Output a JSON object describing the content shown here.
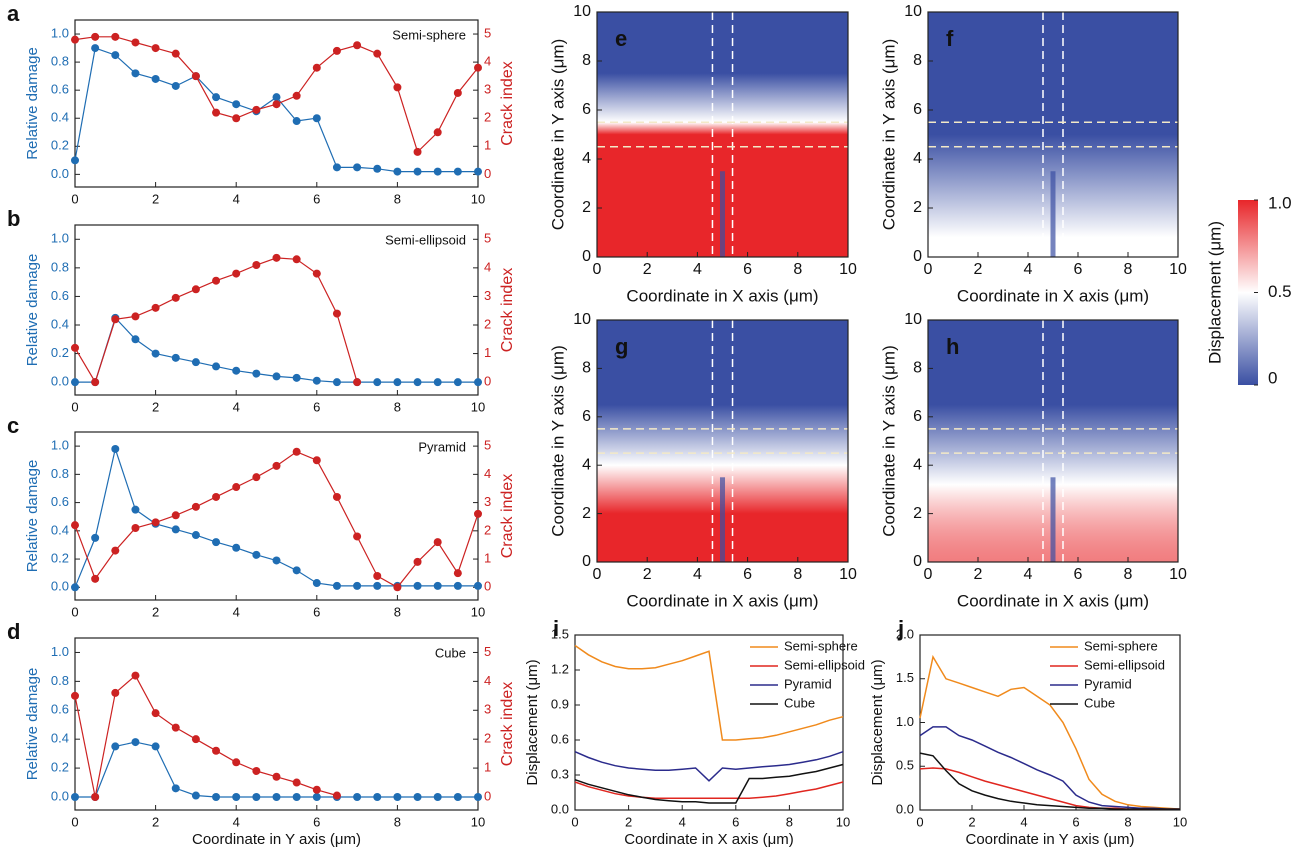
{
  "chart_data": [
    {
      "type": "line",
      "panel": "a",
      "annotation": "Semi-sphere",
      "markers": true,
      "ylabel": "Relative damage",
      "y2label": "Crack index",
      "x": [
        0,
        0.5,
        1,
        1.5,
        2,
        2.5,
        3,
        3.5,
        4,
        4.5,
        5,
        5.5,
        6,
        6.5,
        7,
        7.5,
        8,
        8.5,
        9,
        9.5,
        10
      ],
      "xlim": [
        0,
        10
      ],
      "xticks": [
        0,
        2,
        4,
        6,
        8,
        10
      ],
      "ylim": [
        -0.09,
        1.1
      ],
      "yticks": [
        {
          "value": 0,
          "label": "0.0"
        },
        {
          "value": 0.2,
          "label": "0.2"
        },
        {
          "value": 0.4,
          "label": "0.4"
        },
        {
          "value": 0.6,
          "label": "0.6"
        },
        {
          "value": 0.8,
          "label": "0.8"
        },
        {
          "value": 1,
          "label": "1.0"
        }
      ],
      "y2lim": [
        -0.45,
        5.5
      ],
      "y2ticks": [
        0,
        1,
        2,
        3,
        4,
        5
      ],
      "series": [
        {
          "color": "#1f6db3",
          "values": [
            0.1,
            0.9,
            0.85,
            0.72,
            0.68,
            0.63,
            0.7,
            0.55,
            0.5,
            0.45,
            0.55,
            0.38,
            0.4,
            0.05,
            0.05,
            0.04,
            0.02,
            0.02,
            0.02,
            0.02,
            0.02
          ]
        },
        {
          "color": "#cc2222",
          "axis": "y2",
          "values": [
            4.8,
            4.9,
            4.9,
            4.7,
            4.5,
            4.3,
            3.5,
            2.2,
            2.0,
            2.3,
            2.5,
            2.8,
            3.8,
            4.4,
            4.6,
            4.3,
            3.1,
            0.8,
            1.5,
            2.9,
            3.8
          ]
        }
      ]
    },
    {
      "type": "line",
      "panel": "b",
      "annotation": "Semi-ellipsoid",
      "markers": true,
      "ylabel": "Relative damage",
      "y2label": "Crack index",
      "x": [
        0,
        0.5,
        1,
        1.5,
        2,
        2.5,
        3,
        3.5,
        4,
        4.5,
        5,
        5.5,
        6,
        6.5,
        7,
        7.5,
        8,
        8.5,
        9,
        9.5,
        10
      ],
      "xlim": [
        0,
        10
      ],
      "xticks": [
        0,
        2,
        4,
        6,
        8,
        10
      ],
      "ylim": [
        -0.09,
        1.1
      ],
      "yticks": [
        {
          "value": 0,
          "label": "0.0"
        },
        {
          "value": 0.2,
          "label": "0.2"
        },
        {
          "value": 0.4,
          "label": "0.4"
        },
        {
          "value": 0.6,
          "label": "0.6"
        },
        {
          "value": 0.8,
          "label": "0.8"
        },
        {
          "value": 1,
          "label": "1.0"
        }
      ],
      "y2lim": [
        -0.45,
        5.5
      ],
      "y2ticks": [
        0,
        1,
        2,
        3,
        4,
        5
      ],
      "series": [
        {
          "color": "#1f6db3",
          "values": [
            0,
            0,
            0.45,
            0.3,
            0.2,
            0.17,
            0.14,
            0.11,
            0.08,
            0.06,
            0.04,
            0.03,
            0.01,
            0,
            0,
            0,
            0,
            0,
            0,
            0,
            0
          ]
        },
        {
          "color": "#cc2222",
          "axis": "y2",
          "values": [
            1.2,
            0,
            2.2,
            2.3,
            2.6,
            2.95,
            3.25,
            3.55,
            3.8,
            4.1,
            4.35,
            4.3,
            3.8,
            2.4,
            0,
            null,
            null,
            null,
            null,
            null,
            null
          ]
        }
      ]
    },
    {
      "type": "line",
      "panel": "c",
      "annotation": "Pyramid",
      "markers": true,
      "ylabel": "Relative damage",
      "y2label": "Crack index",
      "x": [
        0,
        0.5,
        1,
        1.5,
        2,
        2.5,
        3,
        3.5,
        4,
        4.5,
        5,
        5.5,
        6,
        6.5,
        7,
        7.5,
        8,
        8.5,
        9,
        9.5,
        10
      ],
      "xlim": [
        0,
        10
      ],
      "xticks": [
        0,
        2,
        4,
        6,
        8,
        10
      ],
      "ylim": [
        -0.09,
        1.1
      ],
      "yticks": [
        {
          "value": 0,
          "label": "0.0"
        },
        {
          "value": 0.2,
          "label": "0.2"
        },
        {
          "value": 0.4,
          "label": "0.4"
        },
        {
          "value": 0.6,
          "label": "0.6"
        },
        {
          "value": 0.8,
          "label": "0.8"
        },
        {
          "value": 1,
          "label": "1.0"
        }
      ],
      "y2lim": [
        -0.45,
        5.5
      ],
      "y2ticks": [
        0,
        1,
        2,
        3,
        4,
        5
      ],
      "series": [
        {
          "color": "#1f6db3",
          "values": [
            0,
            0.35,
            0.98,
            0.55,
            0.45,
            0.41,
            0.37,
            0.32,
            0.28,
            0.23,
            0.19,
            0.12,
            0.03,
            0.01,
            0.01,
            0.01,
            0.01,
            0.01,
            0.01,
            0.01,
            0.01
          ]
        },
        {
          "color": "#cc2222",
          "axis": "y2",
          "values": [
            2.2,
            0.3,
            1.3,
            2.1,
            2.3,
            2.55,
            2.85,
            3.2,
            3.55,
            3.9,
            4.3,
            4.8,
            4.5,
            3.2,
            1.8,
            0.4,
            0,
            0.9,
            1.6,
            0.5,
            2.6
          ]
        }
      ]
    },
    {
      "type": "line",
      "panel": "d",
      "annotation": "Cube",
      "markers": true,
      "ylabel": "Relative damage",
      "y2label": "Crack index",
      "xlabel": "Coordinate in Y axis (μm)",
      "x": [
        0,
        0.5,
        1,
        1.5,
        2,
        2.5,
        3,
        3.5,
        4,
        4.5,
        5,
        5.5,
        6,
        6.5,
        7,
        7.5,
        8,
        8.5,
        9,
        9.5,
        10
      ],
      "xlim": [
        0,
        10
      ],
      "xticks": [
        0,
        2,
        4,
        6,
        8,
        10
      ],
      "ylim": [
        -0.09,
        1.1
      ],
      "yticks": [
        {
          "value": 0,
          "label": "0.0"
        },
        {
          "value": 0.2,
          "label": "0.2"
        },
        {
          "value": 0.4,
          "label": "0.4"
        },
        {
          "value": 0.6,
          "label": "0.6"
        },
        {
          "value": 0.8,
          "label": "0.8"
        },
        {
          "value": 1,
          "label": "1.0"
        }
      ],
      "y2lim": [
        -0.45,
        5.5
      ],
      "y2ticks": [
        0,
        1,
        2,
        3,
        4,
        5
      ],
      "series": [
        {
          "color": "#1f6db3",
          "values": [
            0,
            0,
            0.35,
            0.38,
            0.35,
            0.06,
            0.01,
            0,
            0,
            0,
            0,
            0,
            0,
            0,
            0,
            0,
            0,
            0,
            0,
            0,
            0
          ]
        },
        {
          "color": "#cc2222",
          "axis": "y2",
          "values": [
            3.5,
            0,
            3.6,
            4.2,
            2.9,
            2.4,
            2.0,
            1.6,
            1.2,
            0.9,
            0.7,
            0.5,
            0.25,
            0.05,
            null,
            null,
            null,
            null,
            null,
            null,
            null
          ]
        }
      ]
    },
    {
      "type": "heatmap",
      "panel": "e",
      "xlabel": "Coordinate in X axis (μm)",
      "ylabel": "Coordinate in Y axis (μm)",
      "xlim": [
        0,
        10
      ],
      "ylim": [
        0,
        10
      ],
      "xticks": [
        0,
        2,
        4,
        6,
        8,
        10
      ],
      "yticks": [
        0,
        2,
        4,
        6,
        8,
        10
      ]
    },
    {
      "type": "heatmap",
      "panel": "f",
      "xlabel": "Coordinate in X axis (μm)",
      "ylabel": "Coordinate in Y axis (μm)",
      "xlim": [
        0,
        10
      ],
      "ylim": [
        0,
        10
      ],
      "xticks": [
        0,
        2,
        4,
        6,
        8,
        10
      ],
      "yticks": [
        0,
        2,
        4,
        6,
        8,
        10
      ]
    },
    {
      "type": "heatmap",
      "panel": "g",
      "xlabel": "Coordinate in X axis (μm)",
      "ylabel": "Coordinate in Y axis (μm)",
      "xlim": [
        0,
        10
      ],
      "ylim": [
        0,
        10
      ],
      "xticks": [
        0,
        2,
        4,
        6,
        8,
        10
      ],
      "yticks": [
        0,
        2,
        4,
        6,
        8,
        10
      ]
    },
    {
      "type": "heatmap",
      "panel": "h",
      "xlabel": "Coordinate in X axis (μm)",
      "ylabel": "Coordinate in Y axis (μm)",
      "xlim": [
        0,
        10
      ],
      "ylim": [
        0,
        10
      ],
      "xticks": [
        0,
        2,
        4,
        6,
        8,
        10
      ],
      "yticks": [
        0,
        2,
        4,
        6,
        8,
        10
      ]
    },
    {
      "type": "line",
      "panel": "i",
      "xlabel": "Coordinate in X axis (μm)",
      "ylabel": "Displacement (μm)",
      "x": [
        0,
        0.5,
        1,
        1.5,
        2,
        2.5,
        3,
        3.5,
        4,
        4.5,
        5,
        5.5,
        6,
        6.5,
        7,
        7.5,
        8,
        8.5,
        9,
        9.5,
        10
      ],
      "xlim": [
        0,
        10
      ],
      "xticks": [
        0,
        2,
        4,
        6,
        8,
        10
      ],
      "ylim": [
        0,
        1.5
      ],
      "yticks": [
        {
          "value": 0,
          "label": "0.0"
        },
        {
          "value": 0.3,
          "label": "0.3"
        },
        {
          "value": 0.6,
          "label": "0.6"
        },
        {
          "value": 0.9,
          "label": "0.9"
        },
        {
          "value": 1.2,
          "label": "1.2"
        },
        {
          "value": 1.5,
          "label": "1.5"
        }
      ],
      "series": [
        {
          "name": "Semi-sphere",
          "color": "#f08a1c",
          "values": [
            1.41,
            1.33,
            1.27,
            1.23,
            1.21,
            1.21,
            1.22,
            1.25,
            1.28,
            1.32,
            1.36,
            0.6,
            0.6,
            0.61,
            0.62,
            0.64,
            0.67,
            0.7,
            0.73,
            0.77,
            0.8
          ]
        },
        {
          "name": "Semi-ellipsoid",
          "color": "#e0261f",
          "values": [
            0.24,
            0.2,
            0.17,
            0.14,
            0.12,
            0.11,
            0.1,
            0.1,
            0.1,
            0.1,
            0.1,
            0.1,
            0.1,
            0.1,
            0.11,
            0.12,
            0.14,
            0.16,
            0.18,
            0.21,
            0.24
          ]
        },
        {
          "name": "Pyramid",
          "color": "#2b2b8c",
          "values": [
            0.5,
            0.45,
            0.41,
            0.38,
            0.36,
            0.35,
            0.34,
            0.34,
            0.35,
            0.36,
            0.25,
            0.36,
            0.35,
            0.36,
            0.37,
            0.38,
            0.39,
            0.41,
            0.43,
            0.46,
            0.5
          ]
        },
        {
          "name": "Cube",
          "color": "#111111",
          "values": [
            0.26,
            0.22,
            0.19,
            0.16,
            0.13,
            0.11,
            0.09,
            0.08,
            0.07,
            0.07,
            0.06,
            0.06,
            0.06,
            0.27,
            0.27,
            0.28,
            0.29,
            0.31,
            0.33,
            0.36,
            0.39
          ]
        }
      ]
    },
    {
      "type": "line",
      "panel": "j",
      "xlabel": "Coordinate in Y axis (μm)",
      "ylabel": "Displacement (μm)",
      "x": [
        0,
        0.5,
        1,
        1.5,
        2,
        2.5,
        3,
        3.5,
        4,
        4.5,
        5,
        5.5,
        6,
        6.5,
        7,
        7.5,
        8,
        8.5,
        9,
        9.5,
        10
      ],
      "xlim": [
        0,
        10
      ],
      "xticks": [
        0,
        2,
        4,
        6,
        8,
        10
      ],
      "ylim": [
        0,
        2
      ],
      "yticks": [
        {
          "value": 0,
          "label": "0.0"
        },
        {
          "value": 0.5,
          "label": "0.5"
        },
        {
          "value": 1,
          "label": "1.0"
        },
        {
          "value": 1.5,
          "label": "1.5"
        },
        {
          "value": 2,
          "label": "2.0"
        }
      ],
      "series": [
        {
          "name": "Semi-sphere",
          "color": "#f08a1c",
          "values": [
            1.05,
            1.75,
            1.5,
            1.45,
            1.4,
            1.35,
            1.3,
            1.38,
            1.4,
            1.3,
            1.2,
            1.0,
            0.7,
            0.35,
            0.18,
            0.1,
            0.06,
            0.04,
            0.03,
            0.02,
            0.01
          ]
        },
        {
          "name": "Semi-ellipsoid",
          "color": "#e0261f",
          "values": [
            0.47,
            0.48,
            0.47,
            0.43,
            0.38,
            0.33,
            0.29,
            0.25,
            0.21,
            0.17,
            0.13,
            0.09,
            0.05,
            0.03,
            0.02,
            0.02,
            0.01,
            0.01,
            0.01,
            0.01,
            0.01
          ]
        },
        {
          "name": "Pyramid",
          "color": "#2b2b8c",
          "values": [
            0.85,
            0.95,
            0.95,
            0.85,
            0.8,
            0.73,
            0.66,
            0.6,
            0.53,
            0.46,
            0.4,
            0.33,
            0.17,
            0.09,
            0.05,
            0.04,
            0.03,
            0.02,
            0.02,
            0.01,
            0.01
          ]
        },
        {
          "name": "Cube",
          "color": "#111111",
          "values": [
            0.65,
            0.62,
            0.45,
            0.3,
            0.22,
            0.17,
            0.13,
            0.1,
            0.08,
            0.06,
            0.05,
            0.04,
            0.03,
            0.02,
            0.02,
            0.01,
            0.01,
            0.01,
            0.01,
            0.01,
            0.01
          ]
        }
      ]
    },
    {
      "type": "colorbar",
      "title": "Displacement (μm)",
      "colors": [
        "#3a4fa3",
        "#ffffff",
        "#e8262a"
      ],
      "ylim": [
        0,
        1
      ],
      "yticks": [
        {
          "value": 1,
          "label": "1.0"
        },
        {
          "value": 0.5,
          "label": "0.5"
        },
        0
      ]
    }
  ]
}
